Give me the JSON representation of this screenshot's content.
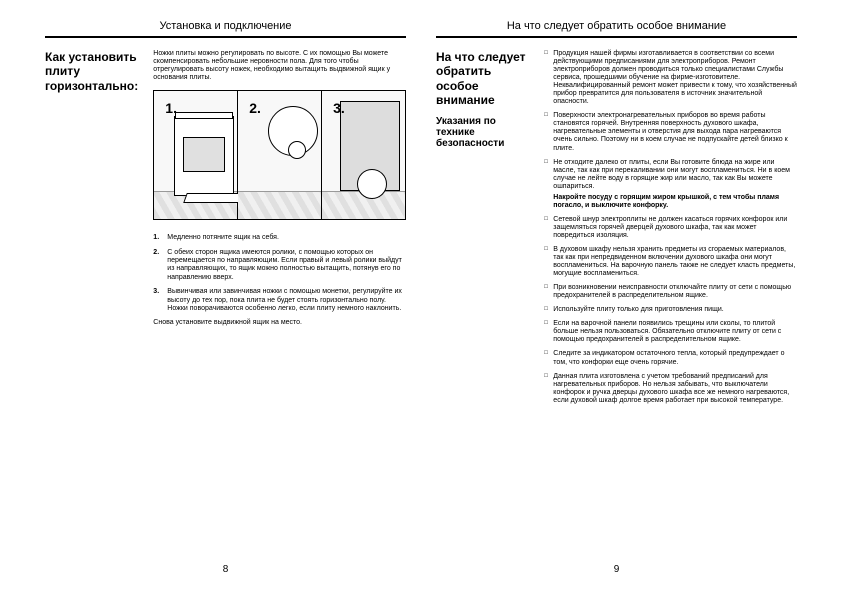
{
  "left": {
    "header": "Установка и подключение",
    "title": "Как установить плиту горизонтально:",
    "intro": "Ножки плиты можно регулировать по высоте. С их помощью Вы можете скомпенсировать небольшие неровности пола. Для того чтобы отрегулировать высоту ножек, необходимо вытащить выдвижной ящик у основания плиты.",
    "panels": [
      "1.",
      "2.",
      "3."
    ],
    "steps": [
      {
        "n": "1.",
        "t": "Медленно потяните ящик на себя."
      },
      {
        "n": "2.",
        "t": "С обеих сторон ящика имеются ролики, с помощью которых он перемещается по направляющим. Если правый и левый ролики выйдут из направляющих, то ящик можно полностью вытащить, потянув его по направлению вверх."
      },
      {
        "n": "3.",
        "t": "Вывинчивая или завинчивая ножки с помощью монетки, регулируйте их высоту до тех пор, пока плита не будет стоять горизонтально полу. Ножки поворачиваются особенно легко, если плиту немного наклонить."
      }
    ],
    "after": "Снова установите выдвижной ящик на место.",
    "page": "8"
  },
  "right": {
    "header": "На что следует обратить особое внимание",
    "title": "На что следует обратить особое внимание",
    "subtitle": "Указания по технике безопасности",
    "bullets": [
      {
        "t": "Продукция нашей фирмы изготавливается в соответствии со всеми действующими предписаниями для электроприборов. Ремонт электроприборов должен проводиться только специалистами Службы сервиса, прошедшими обучение на фирме-изготовителе. Неквалифицированный ремонт может привести к тому, что хозяйственный прибор превратится для пользователя в источник значительной опасности."
      },
      {
        "t": "Поверхности электронагревательных приборов во время работы становятся горячей. Внутренняя поверхность духового шкафа, нагревательные элементы и отверстия для выхода пара нагреваются очень сильно. Поэтому ни в коем случае не подпускайте детей близко к плите."
      },
      {
        "t": "Не отходите далеко от плиты, если Вы готовите блюда на жире или масле, так как при перекаливании они могут воспламениться. Ни в коем случае не лейте воду в горящие жир или масло, так как Вы можете ошпариться.",
        "extra": "Накройте посуду с горящим жиром крышкой, с тем чтобы пламя погасло, и выключите конфорку."
      },
      {
        "t": "Сетевой шнур электроплиты не должен касаться горячих конфорок или защемляться горячей дверцей духового шкафа, так как может повредиться изоляция."
      },
      {
        "t": "В духовом шкафу нельзя хранить предметы из сгораемых материалов, так как при непредвиденном включении духового шкафа они могут воспламениться. На варочную панель также не следует класть предметы, могущие воспламениться."
      },
      {
        "t": "При возникновении неисправности отключайте плиту от сети с помощью предохранителей в распределительном ящике."
      },
      {
        "t": "Используйте плиту только для приготовления пищи."
      },
      {
        "t": "Если на варочной панели появились трещины или сколы, то плитой больше нельзя пользоваться. Обязательно отключите плиту от сети с помощью предохранителей в распределительном ящике."
      },
      {
        "t": "Следите за индикатором остаточного тепла, который предупреждает о том, что конфорки еще очень горячие."
      },
      {
        "t": "Данная плита изготовлена с учетом требований предписаний для нагревательных приборов. Но нельзя забывать, что выключатели конфорок и ручка дверцы духового шкафа все же немного нагреваются, если духовой шкаф долгое время работает при высокой температуре."
      }
    ],
    "page": "9"
  }
}
